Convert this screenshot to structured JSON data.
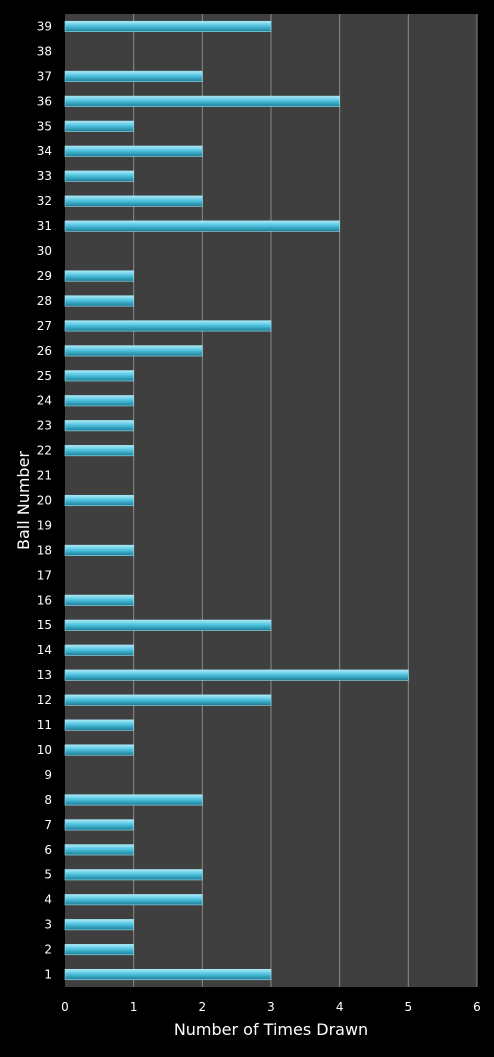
{
  "chart_data": {
    "type": "bar",
    "orientation": "horizontal",
    "xlabel": "Number of Times Drawn",
    "ylabel": "Ball Number",
    "xlim": [
      0,
      6
    ],
    "xticks": [
      0,
      1,
      2,
      3,
      4,
      5,
      6
    ],
    "grid": "vertical",
    "legend": "none",
    "categories": [
      "1",
      "2",
      "3",
      "4",
      "5",
      "6",
      "7",
      "8",
      "9",
      "10",
      "11",
      "12",
      "13",
      "14",
      "15",
      "16",
      "17",
      "18",
      "19",
      "20",
      "21",
      "22",
      "23",
      "24",
      "25",
      "26",
      "27",
      "28",
      "29",
      "30",
      "31",
      "32",
      "33",
      "34",
      "35",
      "36",
      "37",
      "38",
      "39"
    ],
    "values": [
      3,
      1,
      1,
      2,
      2,
      1,
      1,
      2,
      0,
      1,
      1,
      3,
      5,
      1,
      3,
      1,
      0,
      1,
      0,
      1,
      0,
      1,
      1,
      1,
      1,
      2,
      3,
      1,
      1,
      0,
      4,
      2,
      1,
      2,
      1,
      4,
      2,
      0,
      3
    ],
    "colors": {
      "background": "#000000",
      "plot_area": "#3f3f3f",
      "gridline": "#8a8a8a",
      "bar_top": "#aee9f7",
      "bar_mid": "#4fc3e0",
      "bar_bottom": "#1c7d96",
      "text": "#ffffff"
    }
  }
}
